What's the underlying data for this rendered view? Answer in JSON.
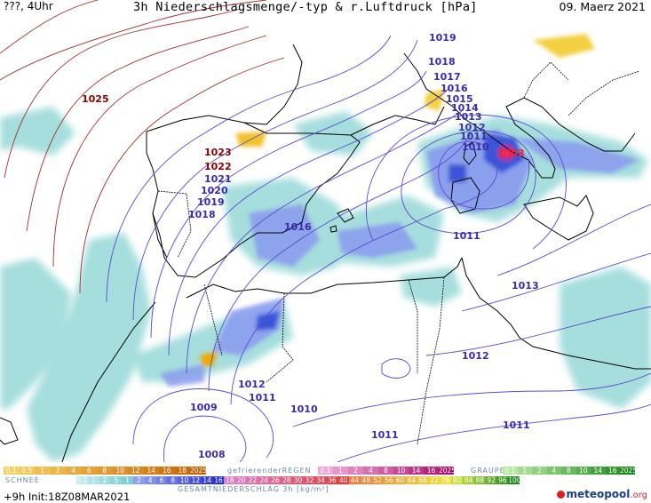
{
  "header": {
    "left": "???, 4Uhr",
    "title": "3h Niederschlagsmenge/-typ & r.Luftdruck [hPa]",
    "date": "09. Maerz 2021"
  },
  "isobar_labels": [
    {
      "value": "1025",
      "kind": "high"
    },
    {
      "value": "1023",
      "kind": "high"
    },
    {
      "value": "1022",
      "kind": "high"
    },
    {
      "value": "1021",
      "kind": "low"
    },
    {
      "value": "1020",
      "kind": "low"
    },
    {
      "value": "1019",
      "kind": "low"
    },
    {
      "value": "1018",
      "kind": "low"
    },
    {
      "value": "1016",
      "kind": "low"
    },
    {
      "value": "1019",
      "kind": "low"
    },
    {
      "value": "1018",
      "kind": "low"
    },
    {
      "value": "1017",
      "kind": "low"
    },
    {
      "value": "1016",
      "kind": "low"
    },
    {
      "value": "1015",
      "kind": "low"
    },
    {
      "value": "1014",
      "kind": "low"
    },
    {
      "value": "1013",
      "kind": "low"
    },
    {
      "value": "1012",
      "kind": "low"
    },
    {
      "value": "1011",
      "kind": "low"
    },
    {
      "value": "1010",
      "kind": "low"
    },
    {
      "value": "1003",
      "kind": "red"
    },
    {
      "value": "1011",
      "kind": "low"
    },
    {
      "value": "1013",
      "kind": "low"
    },
    {
      "value": "1012",
      "kind": "low"
    },
    {
      "value": "1012",
      "kind": "low"
    },
    {
      "value": "1011",
      "kind": "low"
    },
    {
      "value": "1009",
      "kind": "low"
    },
    {
      "value": "1010",
      "kind": "low"
    },
    {
      "value": "1011",
      "kind": "low"
    },
    {
      "value": "1011",
      "kind": "low"
    },
    {
      "value": "1008",
      "kind": "low"
    }
  ],
  "legend": {
    "snow_label": "SCHNEE",
    "freezing_rain_label": "gefrierenderREGEN",
    "graupel_label": "GRAUPEL",
    "total_label": "GESAMTNIEDERSCHLAG 3h [kg/m²]",
    "snow_scale": [
      "0.1",
      "0.5",
      "1",
      "2",
      "4",
      "6",
      "8",
      "10",
      "12",
      "14",
      "16",
      "18",
      "2025+"
    ],
    "freezing_scale": [
      "0.1",
      "1",
      "2",
      "4",
      "8",
      "10",
      "14",
      "16",
      "2025+"
    ],
    "graupel_scale": [
      "0.1",
      "1",
      "2",
      "4",
      "8",
      "10",
      "14",
      "16",
      "2025+"
    ],
    "total_scale": [
      "0.1",
      "1",
      "2",
      "5",
      "1",
      "2",
      "4",
      "6",
      "8",
      "10",
      "12",
      "14",
      "16",
      "18",
      "20",
      "22",
      "24",
      "26",
      "28",
      "30",
      "32",
      "34",
      "36",
      "40",
      "44",
      "48",
      "52",
      "56",
      "60",
      "64",
      "68",
      "72",
      "76",
      "80",
      "84",
      "88",
      "92",
      "96",
      "100"
    ],
    "colors": {
      "snow": "#f0a800",
      "freezing": "#e040a0",
      "graupel": "#44bb33",
      "rain_light": "#9fdde0",
      "rain_mid": "#8899ee",
      "rain_heavy": "#3a55d8"
    }
  },
  "footer": {
    "run": "+9h  Init:18Z08MAR2021",
    "logo": "meteopool",
    "logo_tld": ".org"
  }
}
